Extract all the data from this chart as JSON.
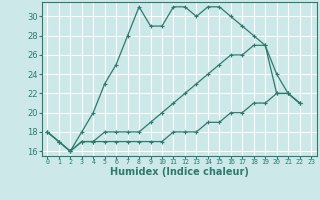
{
  "title": "",
  "xlabel": "Humidex (Indice chaleur)",
  "ylabel": "",
  "background_color": "#cce8e8",
  "grid_color": "#ffffff",
  "line_color": "#2e7b6e",
  "xlim": [
    -0.5,
    23.5
  ],
  "ylim": [
    15.5,
    31.5
  ],
  "yticks": [
    16,
    18,
    20,
    22,
    24,
    26,
    28,
    30
  ],
  "xticks": [
    0,
    1,
    2,
    3,
    4,
    5,
    6,
    7,
    8,
    9,
    10,
    11,
    12,
    13,
    14,
    15,
    16,
    17,
    18,
    19,
    20,
    21,
    22,
    23
  ],
  "series": [
    [
      18,
      17,
      16,
      18,
      20,
      23,
      25,
      28,
      31,
      29,
      29,
      31,
      31,
      30,
      31,
      31,
      30,
      29,
      28,
      27,
      24,
      22,
      21
    ],
    [
      18,
      17,
      16,
      17,
      17,
      18,
      18,
      18,
      18,
      19,
      20,
      21,
      22,
      23,
      24,
      25,
      26,
      26,
      27,
      27,
      22,
      22,
      21
    ],
    [
      18,
      17,
      16,
      17,
      17,
      17,
      17,
      17,
      17,
      17,
      17,
      18,
      18,
      18,
      19,
      19,
      20,
      20,
      21,
      21,
      22,
      22,
      21
    ]
  ],
  "series_x": [
    0,
    1,
    2,
    3,
    4,
    5,
    6,
    7,
    8,
    9,
    10,
    11,
    12,
    13,
    14,
    15,
    16,
    17,
    18,
    19,
    20,
    21,
    22
  ]
}
